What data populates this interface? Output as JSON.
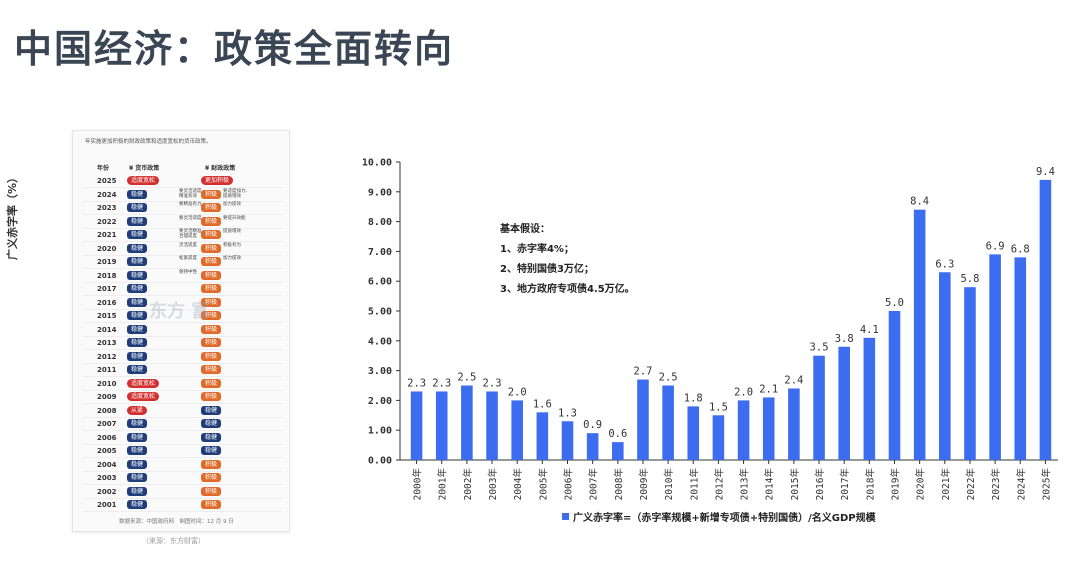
{
  "page": {
    "title": "中国经济：政策全面转向"
  },
  "policy_card": {
    "intro": "年实施更加积极的财政政策和适度宽松的货币政策。",
    "headers": {
      "year": "年份",
      "monetary": "¥ 货币政策",
      "fiscal": "¥ 财政政策"
    },
    "rows": [
      {
        "year": "2025",
        "monetary": "适度宽松",
        "m_color": "red",
        "m_note": "",
        "fiscal": "更加积极",
        "f_color": "red",
        "f_note": ""
      },
      {
        "year": "2024",
        "monetary": "稳健",
        "m_color": "blue",
        "m_note": "要灵活适度、\n精准有效",
        "fiscal": "积极",
        "f_color": "orange",
        "f_note": "要适度加力、\n提质增效"
      },
      {
        "year": "2023",
        "monetary": "稳健",
        "m_color": "blue",
        "m_note": "要精准有力",
        "fiscal": "积极",
        "f_color": "orange",
        "f_note": "加力提效"
      },
      {
        "year": "2022",
        "monetary": "稳健",
        "m_color": "blue",
        "m_note": "要灵活适度",
        "fiscal": "积极",
        "f_color": "orange",
        "f_note": "要提升效能"
      },
      {
        "year": "2021",
        "monetary": "稳健",
        "m_color": "blue",
        "m_note": "要灵活精准、\n合理适度",
        "fiscal": "积极",
        "f_color": "orange",
        "f_note": "提质增效"
      },
      {
        "year": "2020",
        "monetary": "稳健",
        "m_color": "blue",
        "m_note": "灵活适度",
        "fiscal": "积极",
        "f_color": "orange",
        "f_note": "积极有为"
      },
      {
        "year": "2019",
        "monetary": "稳健",
        "m_color": "blue",
        "m_note": "松紧适度",
        "fiscal": "积极",
        "f_color": "orange",
        "f_note": "加力提效"
      },
      {
        "year": "2018",
        "monetary": "稳健",
        "m_color": "blue",
        "m_note": "保持中性",
        "fiscal": "积极",
        "f_color": "orange",
        "f_note": ""
      },
      {
        "year": "2017",
        "monetary": "稳健",
        "m_color": "blue",
        "m_note": "",
        "fiscal": "积极",
        "f_color": "orange",
        "f_note": ""
      },
      {
        "year": "2016",
        "monetary": "稳健",
        "m_color": "blue",
        "m_note": "",
        "fiscal": "积极",
        "f_color": "orange",
        "f_note": ""
      },
      {
        "year": "2015",
        "monetary": "稳健",
        "m_color": "blue",
        "m_note": "",
        "fiscal": "积极",
        "f_color": "orange",
        "f_note": ""
      },
      {
        "year": "2014",
        "monetary": "稳健",
        "m_color": "blue",
        "m_note": "",
        "fiscal": "积极",
        "f_color": "orange",
        "f_note": ""
      },
      {
        "year": "2013",
        "monetary": "稳健",
        "m_color": "blue",
        "m_note": "",
        "fiscal": "积极",
        "f_color": "orange",
        "f_note": ""
      },
      {
        "year": "2012",
        "monetary": "稳健",
        "m_color": "blue",
        "m_note": "",
        "fiscal": "积极",
        "f_color": "orange",
        "f_note": ""
      },
      {
        "year": "2011",
        "monetary": "稳健",
        "m_color": "blue",
        "m_note": "",
        "fiscal": "积极",
        "f_color": "orange",
        "f_note": ""
      },
      {
        "year": "2010",
        "monetary": "适度宽松",
        "m_color": "red",
        "m_note": "",
        "fiscal": "积极",
        "f_color": "orange",
        "f_note": ""
      },
      {
        "year": "2009",
        "monetary": "适度宽松",
        "m_color": "red",
        "m_note": "",
        "fiscal": "积极",
        "f_color": "orange",
        "f_note": ""
      },
      {
        "year": "2008",
        "monetary": "从紧",
        "m_color": "red",
        "m_note": "",
        "fiscal": "稳健",
        "f_color": "blue",
        "f_note": ""
      },
      {
        "year": "2007",
        "monetary": "稳健",
        "m_color": "blue",
        "m_note": "",
        "fiscal": "稳健",
        "f_color": "blue",
        "f_note": ""
      },
      {
        "year": "2006",
        "monetary": "稳健",
        "m_color": "blue",
        "m_note": "",
        "fiscal": "稳健",
        "f_color": "blue",
        "f_note": ""
      },
      {
        "year": "2005",
        "monetary": "稳健",
        "m_color": "blue",
        "m_note": "",
        "fiscal": "稳健",
        "f_color": "blue",
        "f_note": ""
      },
      {
        "year": "2004",
        "monetary": "稳健",
        "m_color": "blue",
        "m_note": "",
        "fiscal": "积极",
        "f_color": "orange",
        "f_note": ""
      },
      {
        "year": "2003",
        "monetary": "稳健",
        "m_color": "blue",
        "m_note": "",
        "fiscal": "积极",
        "f_color": "orange",
        "f_note": ""
      },
      {
        "year": "2002",
        "monetary": "稳健",
        "m_color": "blue",
        "m_note": "",
        "fiscal": "积极",
        "f_color": "orange",
        "f_note": ""
      },
      {
        "year": "2001",
        "monetary": "稳健",
        "m_color": "blue",
        "m_note": "",
        "fiscal": "积极",
        "f_color": "orange",
        "f_note": ""
      }
    ],
    "watermark": "东方    富",
    "source": "数据来源：中国政府网　制图时间：12 月 9 日",
    "caption": "（来源：东方财富）"
  },
  "colors": {
    "blue": "#1e3d7a",
    "red": "#d32f2f",
    "orange": "#e06a2a",
    "bar": "#3c6cf0"
  },
  "chart_data": {
    "type": "bar",
    "categories": [
      "2000年",
      "2001年",
      "2002年",
      "2003年",
      "2004年",
      "2005年",
      "2006年",
      "2007年",
      "2008年",
      "2009年",
      "2010年",
      "2011年",
      "2012年",
      "2013年",
      "2014年",
      "2015年",
      "2016年",
      "2017年",
      "2018年",
      "2019年",
      "2020年",
      "2021年",
      "2022年",
      "2023年",
      "2024年",
      "2025年"
    ],
    "values": [
      2.3,
      2.3,
      2.5,
      2.3,
      2.0,
      1.6,
      1.3,
      0.9,
      0.6,
      2.7,
      2.5,
      1.8,
      1.5,
      2.0,
      2.1,
      2.4,
      3.5,
      3.8,
      4.1,
      5.0,
      8.4,
      6.3,
      5.8,
      6.9,
      6.8,
      9.4
    ],
    "ylim": [
      0,
      10
    ],
    "yticks": [
      "0.00",
      "1.00",
      "2.00",
      "3.00",
      "4.00",
      "5.00",
      "6.00",
      "7.00",
      "8.00",
      "9.00",
      "10.00"
    ],
    "ylabel": "广义赤字率（%）",
    "legend": "广义赤字率=（赤字率规模+新增专项债+特别国债）/名义GDP规模",
    "legend_position": "bottom",
    "grid": false,
    "annotation": {
      "title": "基本假设：",
      "items": [
        "1、赤字率4%；",
        "2、特别国债3万亿；",
        "3、地方政府专项债4.5万亿。"
      ]
    }
  }
}
